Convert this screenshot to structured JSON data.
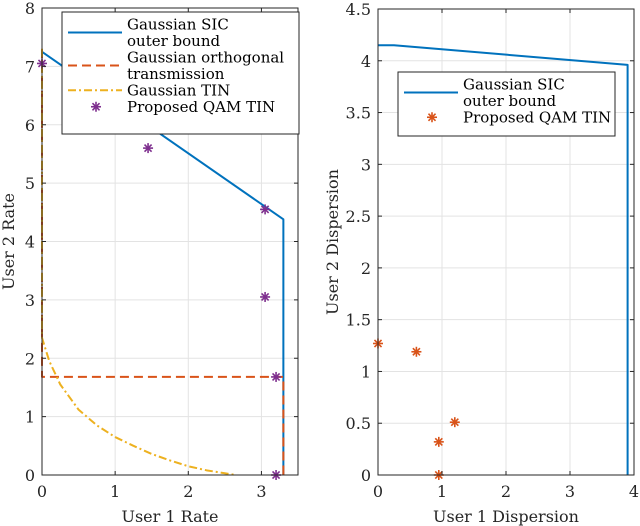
{
  "chart_data": [
    {
      "type": "line",
      "xlabel": "User 1 Rate",
      "ylabel": "User 2 Rate",
      "xlim": [
        0,
        3.5
      ],
      "ylim": [
        0,
        8
      ],
      "xticks": [
        0,
        1,
        2,
        3
      ],
      "yticks": [
        0,
        1,
        2,
        3,
        4,
        5,
        6,
        7,
        8
      ],
      "grid": true,
      "legend_position": "top-right",
      "series": [
        {
          "name": "Gaussian SIC outer bound",
          "legend_lines": [
            "Gaussian SIC",
            "outer bound"
          ],
          "style": "solid",
          "color": "#0072BD",
          "x": [
            0,
            3.3,
            3.3
          ],
          "y": [
            7.25,
            4.38,
            0
          ]
        },
        {
          "name": "Gaussian orthogonal transmission",
          "legend_lines": [
            "Gaussian orthogonal",
            "transmission"
          ],
          "style": "dashed",
          "color": "#D95319",
          "x": [
            0,
            0,
            3.3,
            3.3
          ],
          "y": [
            7.3,
            1.68,
            1.68,
            0
          ]
        },
        {
          "name": "Gaussian TIN",
          "legend_lines": [
            "Gaussian TIN"
          ],
          "style": "dashdot",
          "color": "#EDB120",
          "x": [
            0,
            0,
            0.1,
            0.25,
            0.5,
            0.75,
            1.0,
            1.25,
            1.5,
            1.75,
            2.0,
            2.25,
            2.5,
            2.65
          ],
          "y": [
            7.3,
            2.35,
            1.95,
            1.55,
            1.12,
            0.85,
            0.65,
            0.5,
            0.36,
            0.25,
            0.15,
            0.08,
            0.03,
            0
          ]
        },
        {
          "name": "Proposed QAM TIN",
          "legend_lines": [
            "Proposed QAM TIN"
          ],
          "style": "marker-asterisk",
          "color": "#7E2F8E",
          "x": [
            0,
            1.45,
            3.05,
            3.05,
            3.2,
            3.2
          ],
          "y": [
            7.05,
            5.6,
            4.55,
            3.05,
            1.68,
            0
          ]
        }
      ]
    },
    {
      "type": "line",
      "xlabel": "User 1 Dispersion",
      "ylabel": "User 2 Dispersion",
      "xlim": [
        0,
        4
      ],
      "ylim": [
        0,
        4.5
      ],
      "xticks": [
        0,
        1,
        2,
        3,
        4
      ],
      "yticks": [
        0,
        0.5,
        1,
        1.5,
        2,
        2.5,
        3,
        3.5,
        4,
        4.5
      ],
      "grid": true,
      "legend_position": "upper-middle",
      "series": [
        {
          "name": "Gaussian SIC outer bound",
          "legend_lines": [
            "Gaussian SIC",
            "outer bound"
          ],
          "style": "solid",
          "color": "#0072BD",
          "x": [
            0,
            0.25,
            3.9,
            3.9
          ],
          "y": [
            4.15,
            4.15,
            3.96,
            0
          ]
        },
        {
          "name": "Proposed QAM TIN",
          "legend_lines": [
            "Proposed QAM TIN"
          ],
          "style": "marker-asterisk",
          "color": "#D95319",
          "x": [
            0,
            0.6,
            0.95,
            1.2,
            0.95
          ],
          "y": [
            1.27,
            1.19,
            0.32,
            0.51,
            0
          ]
        }
      ]
    }
  ]
}
